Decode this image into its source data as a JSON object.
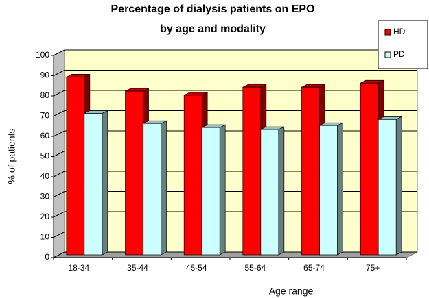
{
  "chart_data": {
    "type": "bar3d",
    "title": [
      "Percentage of dialysis patients on EPO",
      "by age and modality"
    ],
    "x_label": "Age range",
    "y_label": "% of patients",
    "categories": [
      "18-34",
      "35-44",
      "45-54",
      "55-64",
      "65-74",
      "75+"
    ],
    "series": [
      {
        "name": "HD",
        "color": "#ff0000",
        "values": [
          88,
          81,
          79,
          83,
          83,
          85
        ]
      },
      {
        "name": "PD",
        "color": "#ccffff",
        "values": [
          70,
          65,
          63,
          62,
          64,
          67
        ]
      }
    ],
    "ylim": [
      0,
      100
    ],
    "yticks": [
      0,
      10,
      20,
      30,
      40,
      50,
      60,
      70,
      80,
      90,
      100
    ],
    "grid": true,
    "legend": "upper right"
  }
}
